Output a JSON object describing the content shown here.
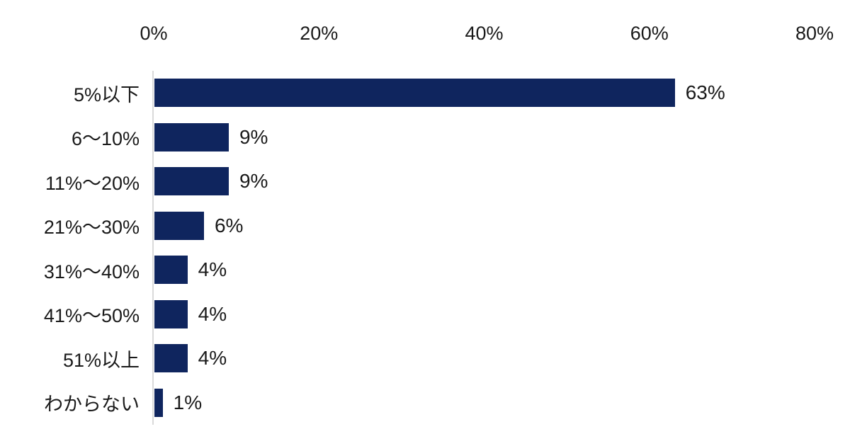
{
  "chart_data": {
    "type": "bar",
    "orientation": "horizontal",
    "title": "",
    "xlabel": "",
    "ylabel": "",
    "categories": [
      "5%以下",
      "6〜10%",
      "11%〜20%",
      "21%〜30%",
      "31%〜40%",
      "41%〜50%",
      "51%以上",
      "わからない"
    ],
    "values": [
      63,
      9,
      9,
      6,
      4,
      4,
      4,
      1
    ],
    "value_labels": [
      "63%",
      "9%",
      "9%",
      "6%",
      "4%",
      "4%",
      "4%",
      "1%"
    ],
    "xlim": [
      0,
      80
    ],
    "xticks": [
      0,
      20,
      40,
      60,
      80
    ],
    "xtick_labels": [
      "0%",
      "20%",
      "40%",
      "60%",
      "80%"
    ],
    "grid": false,
    "legend": false,
    "colors": {
      "bar": "#0F255E",
      "axis_line": "#D9D9D9",
      "text": "#1a1a1a",
      "background": "#ffffff"
    }
  }
}
